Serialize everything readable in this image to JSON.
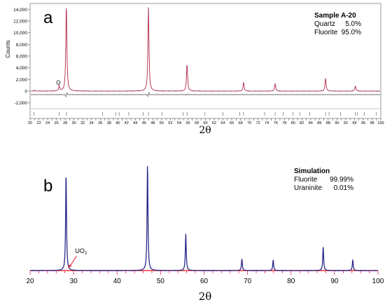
{
  "chart_data": [
    {
      "type": "line",
      "panel_letter": "a",
      "xlabel": "2θ",
      "ylabel": "Counts",
      "xlim": [
        20,
        100
      ],
      "ylim": [
        -3000,
        15000
      ],
      "xticks": [
        "20",
        "21",
        "22",
        "23",
        "24",
        "25",
        "26",
        "27",
        "28",
        "29",
        "30",
        "31",
        "32",
        "33",
        "34",
        "35",
        "36",
        "37",
        "38",
        "39",
        "40",
        "41",
        "42",
        "43",
        "44",
        "45",
        "46",
        "47",
        "48",
        "49",
        "50",
        "51",
        "52",
        "53",
        "54",
        "55",
        "56",
        "57",
        "58",
        "59",
        "60",
        "61",
        "62",
        "63",
        "64",
        "65",
        "66",
        "67",
        "68",
        "69",
        "70",
        "71",
        "72",
        "73",
        "74",
        "75",
        "76",
        "77",
        "78",
        "79",
        "80",
        "81",
        "82",
        "83",
        "84",
        "85",
        "86",
        "87",
        "88",
        "89",
        "90",
        "91",
        "92",
        "93",
        "94",
        "95",
        "96",
        "97",
        "98",
        "99",
        "100"
      ],
      "yticks": [
        {
          "v": -2000,
          "label": "-2,000"
        },
        {
          "v": 0,
          "label": "0"
        },
        {
          "v": 2000,
          "label": "2,000"
        },
        {
          "v": 4000,
          "label": "4,000"
        },
        {
          "v": 6000,
          "label": "6,000"
        },
        {
          "v": 8000,
          "label": "8,000"
        },
        {
          "v": 10000,
          "label": "10,000"
        },
        {
          "v": 12000,
          "label": "12,000"
        },
        {
          "v": 14000,
          "label": "14,000"
        }
      ],
      "grid": false,
      "legend": {
        "title": "Sample  A-20",
        "entries": [
          {
            "name": "Quartz",
            "value": "5.0%"
          },
          {
            "name": "Fluorite",
            "value": "95.0%"
          }
        ],
        "placement": "top-right"
      },
      "annotations": [
        {
          "text": "Q",
          "x": 26.6,
          "y": 780
        }
      ],
      "colors": {
        "observed": "#1f1f7a",
        "calculated": "#e8323c",
        "difference": "#666666",
        "tick_marks": "#4a4a4a"
      },
      "baseline": 0,
      "difference_baseline": -600,
      "peaks": [
        {
          "x": 21.0,
          "y": 140
        },
        {
          "x": 26.64,
          "y": 780
        },
        {
          "x": 28.27,
          "y": 15000
        },
        {
          "x": 47.0,
          "y": 14500
        },
        {
          "x": 55.8,
          "y": 4700
        },
        {
          "x": 68.7,
          "y": 1500
        },
        {
          "x": 75.9,
          "y": 1300
        },
        {
          "x": 87.4,
          "y": 2200
        },
        {
          "x": 94.2,
          "y": 880
        }
      ],
      "reflection_ticks": [
        20.9,
        26.6,
        28.3,
        36.5,
        39.5,
        40.3,
        42.5,
        45.8,
        47.0,
        50.1,
        54.9,
        55.8,
        59.9,
        64.0,
        67.8,
        68.7,
        73.5,
        75.9,
        77.7,
        80.0,
        81.5,
        83.8,
        87.4,
        88.2,
        90.8,
        94.2,
        94.7,
        96.2,
        99.0
      ]
    },
    {
      "type": "line",
      "panel_letter": "b",
      "xlabel": "2θ",
      "ylabel": "",
      "xlim": [
        20,
        100
      ],
      "ylim": [
        0,
        100
      ],
      "xticks": [
        "20",
        "30",
        "40",
        "50",
        "60",
        "70",
        "80",
        "90",
        "100"
      ],
      "minor_step": 2,
      "grid": false,
      "legend": {
        "title": "Simulation",
        "entries": [
          {
            "name": "Fluorite",
            "value": "99.99%"
          },
          {
            "name": "Uraninite",
            "value": "0.01%"
          }
        ],
        "placement": "top-right"
      },
      "annotations": [
        {
          "text": "UO",
          "sub": "2",
          "x": 28.6,
          "y": 1.2
        }
      ],
      "colors": {
        "profile": "#2a2a8a",
        "baseline": "#e8323c",
        "arrow": "#e8323c"
      },
      "peaks": [
        {
          "x": 28.27,
          "y": 91
        },
        {
          "x": 47.0,
          "y": 100
        },
        {
          "x": 55.8,
          "y": 34
        },
        {
          "x": 68.7,
          "y": 11
        },
        {
          "x": 75.9,
          "y": 10
        },
        {
          "x": 87.4,
          "y": 22
        },
        {
          "x": 94.2,
          "y": 10
        }
      ]
    }
  ]
}
